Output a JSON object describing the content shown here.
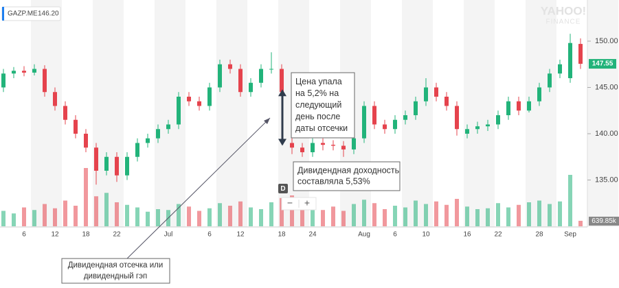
{
  "chart_data": {
    "type": "candlestick",
    "symbol": "GAZP.ME",
    "quote": {
      "value": 146.2,
      "label": "146.20"
    },
    "watermark": [
      "YAHOO!",
      "FINANCE"
    ],
    "categories": [
      null,
      null,
      "6",
      null,
      null,
      "12",
      null,
      null,
      "18",
      null,
      null,
      "22",
      null,
      null,
      null,
      null,
      "Jul",
      null,
      null,
      null,
      "6",
      null,
      null,
      "12",
      null,
      null,
      null,
      "18",
      null,
      null,
      "24",
      null,
      null,
      null,
      null,
      "Aug",
      null,
      null,
      "6",
      null,
      null,
      "10",
      null,
      null,
      null,
      "16",
      null,
      null,
      "22",
      null,
      null,
      null,
      "28",
      null,
      null,
      "Sep",
      null
    ],
    "open": [
      145.0,
      146.5,
      146.8,
      146.6,
      147.0,
      144.5,
      143.0,
      141.5,
      140.0,
      138.5,
      136.0,
      137.5,
      135.5,
      137.5,
      139.0,
      139.5,
      140.5,
      141.0,
      144.0,
      143.5,
      143.0,
      145.0,
      147.5,
      147.0,
      144.5,
      145.5,
      147.0,
      147.0,
      139.0,
      138.5,
      138.0,
      139.0,
      138.8,
      138.7,
      138.3,
      139.5,
      143.0,
      141.0,
      140.5,
      141.5,
      142.0,
      143.5,
      145.0,
      144.0,
      143.0,
      140.0,
      140.5,
      140.8,
      141.0,
      142.0,
      143.5,
      142.5,
      143.5,
      145.0,
      146.5,
      146.0,
      149.7
    ],
    "high": [
      147.0,
      147.2,
      147.3,
      147.5,
      147.4,
      145.0,
      143.5,
      142.0,
      140.5,
      139.0,
      138.0,
      138.0,
      138.0,
      139.5,
      140.0,
      141.0,
      141.5,
      144.5,
      144.5,
      144.0,
      145.5,
      148.0,
      148.0,
      147.5,
      146.0,
      147.5,
      148.8,
      147.5,
      139.5,
      139.0,
      139.5,
      139.5,
      139.3,
      139.2,
      140.0,
      143.5,
      143.5,
      141.5,
      142.0,
      142.5,
      144.0,
      146.0,
      145.5,
      144.5,
      143.5,
      141.0,
      141.3,
      141.5,
      142.5,
      144.0,
      144.0,
      144.0,
      145.5,
      147.0,
      148.0,
      150.8,
      150.3
    ],
    "low": [
      144.5,
      146.0,
      146.2,
      146.3,
      144.0,
      142.5,
      141.0,
      139.5,
      138.0,
      134.5,
      135.5,
      134.8,
      135.0,
      137.0,
      138.5,
      139.0,
      140.0,
      140.5,
      143.0,
      142.5,
      142.5,
      144.5,
      146.5,
      144.0,
      144.0,
      145.0,
      146.5,
      144.0,
      137.8,
      137.5,
      137.5,
      138.2,
      138.2,
      137.5,
      137.8,
      139.0,
      140.5,
      140.0,
      140.0,
      141.0,
      141.5,
      143.0,
      143.5,
      142.5,
      139.8,
      139.5,
      140.0,
      140.3,
      140.5,
      141.5,
      142.0,
      142.3,
      143.0,
      144.5,
      146.0,
      145.5,
      147.0
    ],
    "close": [
      146.5,
      146.8,
      146.6,
      147.0,
      144.5,
      143.0,
      141.5,
      140.0,
      138.5,
      136.0,
      137.5,
      135.5,
      137.5,
      139.0,
      139.5,
      140.5,
      141.0,
      144.0,
      143.5,
      143.0,
      145.0,
      147.5,
      147.0,
      144.5,
      145.5,
      147.0,
      147.0,
      144.5,
      138.5,
      138.0,
      139.0,
      138.8,
      138.7,
      138.3,
      139.5,
      143.0,
      141.0,
      140.5,
      141.5,
      142.0,
      143.5,
      145.0,
      144.0,
      143.0,
      140.5,
      140.5,
      140.8,
      141.0,
      142.0,
      143.5,
      142.5,
      143.5,
      145.0,
      146.5,
      147.5,
      149.8,
      147.55
    ],
    "volume": [
      1800,
      1500,
      2200,
      1900,
      2600,
      2100,
      3000,
      2400,
      6800,
      3500,
      3900,
      2800,
      2500,
      2200,
      1700,
      2000,
      1900,
      2600,
      2300,
      1800,
      2100,
      2700,
      2400,
      2900,
      2200,
      2000,
      2800,
      3300,
      3600,
      2500,
      2100,
      1900,
      2300,
      1800,
      2600,
      3100,
      2700,
      2000,
      2400,
      2200,
      3000,
      2600,
      2900,
      2500,
      3200,
      2300,
      2000,
      2100,
      2700,
      2200,
      2500,
      2800,
      3000,
      2600,
      2900,
      6000,
      639.85
    ],
    "volume_marker": {
      "value": 639.85,
      "label": "639.85k"
    },
    "ylim": [
      130,
      154
    ],
    "yticks": [
      {
        "value": 135,
        "label": "135.00"
      },
      {
        "value": 140,
        "label": "140.00"
      },
      {
        "value": 145,
        "label": "145.00"
      },
      {
        "value": 150,
        "label": "150.00"
      }
    ],
    "up_color": "#22b37a",
    "down_color": "#e5434d",
    "annotations": {
      "drop": [
        "Цена упала",
        "на 5,2% на",
        "следующий",
        "день после",
        "даты отсечки"
      ],
      "yield": [
        "Дивидендная доходность",
        "составляла 5,53%"
      ],
      "gap": [
        "Дивидендная отсечка или",
        "дивидендный гэп"
      ],
      "ex_marker": "D"
    },
    "zoom": [
      "−",
      "+"
    ]
  }
}
